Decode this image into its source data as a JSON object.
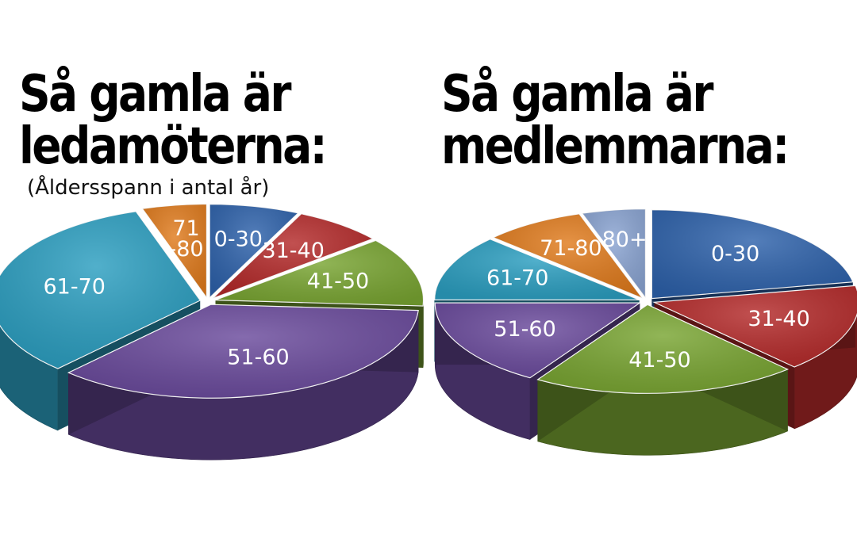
{
  "chart_data": [
    {
      "type": "pie",
      "title_lines": [
        "Så gamla är",
        "ledamöterna:"
      ],
      "subtitle": "(Åldersspann i antal år)",
      "slices": [
        {
          "label": "0-30",
          "value": 7,
          "color": "#2e62ab"
        },
        {
          "label": "31-40",
          "value": 7,
          "color": "#b42a2a"
        },
        {
          "label": "41-50",
          "value": 12,
          "color": "#79a532"
        },
        {
          "label": "51-60",
          "value": 36,
          "color": "#6a4a9c"
        },
        {
          "label": "61-70",
          "value": 33,
          "color": "#2b9ec0"
        },
        {
          "label": "71-80",
          "label_lines": [
            "71",
            "-80"
          ],
          "value": 5,
          "color": "#e07b1d"
        }
      ]
    },
    {
      "type": "pie",
      "title_lines": [
        "Så gamla är",
        "medlemmarna:"
      ],
      "slices": [
        {
          "label": "0-30",
          "value": 22,
          "color": "#2e62ab"
        },
        {
          "label": "31-40",
          "value": 16,
          "color": "#b42a2a"
        },
        {
          "label": "41-50",
          "value": 21,
          "color": "#79a532"
        },
        {
          "label": "51-60",
          "value": 16,
          "color": "#6a4a9c"
        },
        {
          "label": "61-70",
          "value": 12,
          "color": "#2b9ec0"
        },
        {
          "label": "71-80",
          "value": 8,
          "color": "#e07b1d"
        },
        {
          "label": "80+",
          "value": 5,
          "color": "#8aa4d2"
        }
      ]
    }
  ]
}
